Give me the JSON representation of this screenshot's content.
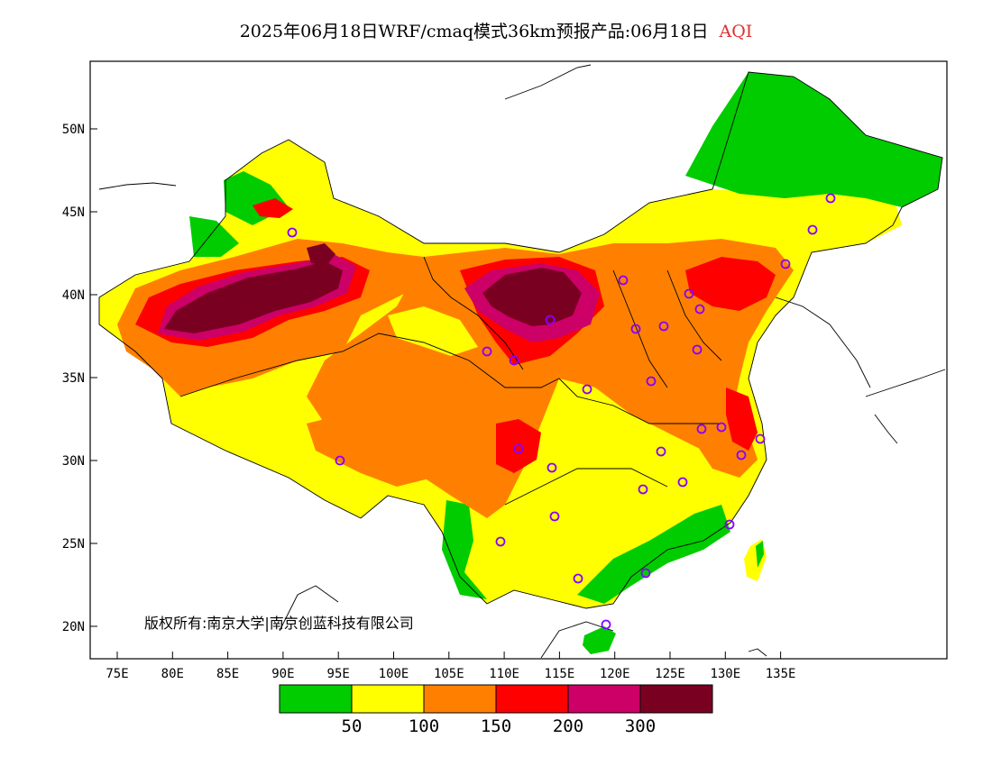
{
  "title": {
    "text": "2025年06月18日WRF/cmaq模式36km预报产品:06月18日",
    "variable": "AQI"
  },
  "copyright": "版权所有:南京大学|南京创蓝科技有限公司",
  "axes": {
    "x_ticks": [
      "75E",
      "80E",
      "85E",
      "90E",
      "95E",
      "100E",
      "105E",
      "110E",
      "115E",
      "120E",
      "125E",
      "130E",
      "135E"
    ],
    "y_ticks": [
      "50N",
      "45N",
      "40N",
      "35N",
      "30N",
      "25N",
      "20N"
    ]
  },
  "legend": {
    "colors": [
      "#00cc00",
      "#ffff00",
      "#ff8000",
      "#ff0000",
      "#cc0066",
      "#7a0022"
    ],
    "labels": [
      "50",
      "100",
      "150",
      "200",
      "300"
    ]
  },
  "colors": {
    "good": "#00cc00",
    "moderate": "#ffff00",
    "unhealthy_sensitive": "#ff8000",
    "unhealthy": "#ff0000",
    "very_unhealthy": "#cc0066",
    "hazardous": "#7a0022",
    "station_marker": "#8800ff",
    "title_accent": "#e03030"
  }
}
